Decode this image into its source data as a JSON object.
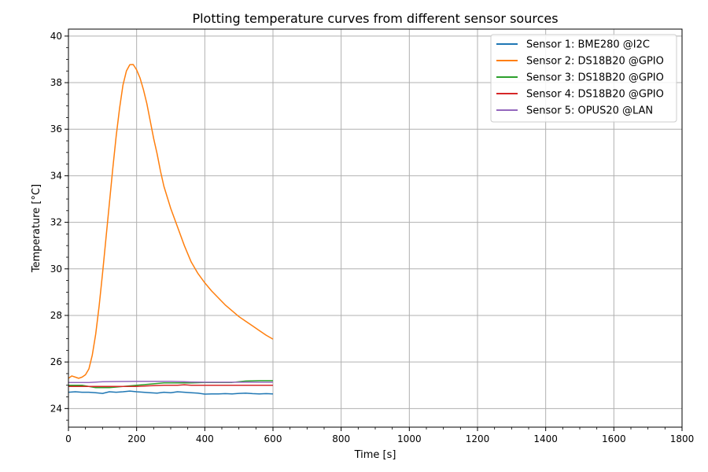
{
  "chart_data": {
    "type": "line",
    "title": "Plotting temperature curves from different sensor sources",
    "xlabel": "Time [s]",
    "ylabel": "Temperature [°C]",
    "xlim": [
      0,
      1800
    ],
    "ylim": [
      23.2,
      40.3
    ],
    "x_ticks": [
      0,
      200,
      400,
      600,
      800,
      1000,
      1200,
      1400,
      1600,
      1800
    ],
    "y_ticks": [
      24,
      26,
      28,
      30,
      32,
      34,
      36,
      38,
      40
    ],
    "grid": true,
    "legend_position": "top-right",
    "series": [
      {
        "name": "Sensor 1: BME280 @I2C",
        "color": "#1f77b4",
        "points": [
          [
            0,
            24.7
          ],
          [
            20,
            24.72
          ],
          [
            40,
            24.7
          ],
          [
            60,
            24.7
          ],
          [
            80,
            24.68
          ],
          [
            100,
            24.65
          ],
          [
            120,
            24.72
          ],
          [
            140,
            24.7
          ],
          [
            160,
            24.72
          ],
          [
            180,
            24.75
          ],
          [
            200,
            24.72
          ],
          [
            220,
            24.7
          ],
          [
            240,
            24.68
          ],
          [
            260,
            24.66
          ],
          [
            280,
            24.7
          ],
          [
            300,
            24.68
          ],
          [
            320,
            24.72
          ],
          [
            340,
            24.7
          ],
          [
            360,
            24.68
          ],
          [
            380,
            24.66
          ],
          [
            400,
            24.62
          ],
          [
            420,
            24.63
          ],
          [
            440,
            24.63
          ],
          [
            460,
            24.64
          ],
          [
            480,
            24.63
          ],
          [
            500,
            24.65
          ],
          [
            520,
            24.66
          ],
          [
            540,
            24.64
          ],
          [
            560,
            24.63
          ],
          [
            580,
            24.64
          ],
          [
            600,
            24.63
          ]
        ]
      },
      {
        "name": "Sensor 2: DS18B20 @GPIO",
        "color": "#ff7f0e",
        "points": [
          [
            0,
            25.3
          ],
          [
            10,
            25.4
          ],
          [
            20,
            25.35
          ],
          [
            30,
            25.3
          ],
          [
            40,
            25.35
          ],
          [
            50,
            25.45
          ],
          [
            60,
            25.7
          ],
          [
            70,
            26.3
          ],
          [
            80,
            27.2
          ],
          [
            90,
            28.4
          ],
          [
            100,
            29.8
          ],
          [
            110,
            31.3
          ],
          [
            120,
            32.8
          ],
          [
            130,
            34.3
          ],
          [
            140,
            35.7
          ],
          [
            150,
            36.9
          ],
          [
            160,
            37.9
          ],
          [
            170,
            38.5
          ],
          [
            180,
            38.77
          ],
          [
            190,
            38.78
          ],
          [
            200,
            38.55
          ],
          [
            210,
            38.2
          ],
          [
            220,
            37.7
          ],
          [
            230,
            37.1
          ],
          [
            240,
            36.35
          ],
          [
            250,
            35.6
          ],
          [
            260,
            34.95
          ],
          [
            270,
            34.2
          ],
          [
            280,
            33.55
          ],
          [
            300,
            32.6
          ],
          [
            320,
            31.8
          ],
          [
            340,
            31.0
          ],
          [
            360,
            30.3
          ],
          [
            380,
            29.8
          ],
          [
            400,
            29.4
          ],
          [
            420,
            29.05
          ],
          [
            440,
            28.75
          ],
          [
            460,
            28.45
          ],
          [
            480,
            28.2
          ],
          [
            500,
            27.95
          ],
          [
            520,
            27.75
          ],
          [
            540,
            27.55
          ],
          [
            560,
            27.35
          ],
          [
            580,
            27.15
          ],
          [
            600,
            26.98
          ]
        ]
      },
      {
        "name": "Sensor 3: DS18B20 @GPIO",
        "color": "#2ca02c",
        "points": [
          [
            0,
            25.0
          ],
          [
            40,
            25.0
          ],
          [
            80,
            24.9
          ],
          [
            120,
            24.9
          ],
          [
            160,
            24.95
          ],
          [
            200,
            25.0
          ],
          [
            240,
            25.05
          ],
          [
            280,
            25.1
          ],
          [
            320,
            25.1
          ],
          [
            360,
            25.1
          ],
          [
            400,
            25.12
          ],
          [
            440,
            25.12
          ],
          [
            480,
            25.12
          ],
          [
            500,
            25.15
          ],
          [
            520,
            25.18
          ],
          [
            560,
            25.2
          ],
          [
            600,
            25.2
          ]
        ]
      },
      {
        "name": "Sensor 4: DS18B20 @GPIO",
        "color": "#d62728",
        "points": [
          [
            0,
            24.95
          ],
          [
            40,
            24.95
          ],
          [
            80,
            24.95
          ],
          [
            120,
            24.95
          ],
          [
            160,
            24.95
          ],
          [
            200,
            24.95
          ],
          [
            240,
            24.98
          ],
          [
            280,
            25.0
          ],
          [
            320,
            25.0
          ],
          [
            340,
            25.02
          ],
          [
            360,
            25.0
          ],
          [
            400,
            25.0
          ],
          [
            440,
            25.0
          ],
          [
            480,
            25.0
          ],
          [
            520,
            25.0
          ],
          [
            560,
            25.0
          ],
          [
            600,
            25.0
          ]
        ]
      },
      {
        "name": "Sensor 5: OPUS20 @LAN",
        "color": "#9467bd",
        "points": [
          [
            0,
            25.12
          ],
          [
            60,
            25.12
          ],
          [
            100,
            25.15
          ],
          [
            140,
            25.16
          ],
          [
            200,
            25.17
          ],
          [
            260,
            25.17
          ],
          [
            300,
            25.17
          ],
          [
            340,
            25.15
          ],
          [
            360,
            25.14
          ],
          [
            400,
            25.13
          ],
          [
            500,
            25.13
          ],
          [
            600,
            25.13
          ]
        ]
      }
    ]
  }
}
